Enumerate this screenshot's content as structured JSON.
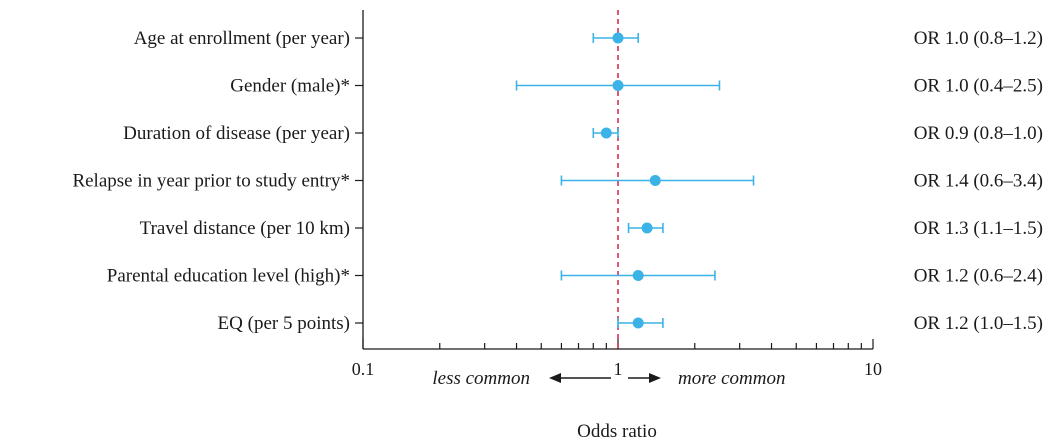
{
  "chart_data": {
    "type": "forest",
    "xlabel": "Odds ratio",
    "xscale": "log",
    "xlim": [
      0.1,
      10
    ],
    "xticks": [
      {
        "value": 0.1,
        "label": "0.1"
      },
      {
        "value": 1,
        "label": "1"
      },
      {
        "value": 10,
        "label": "10"
      }
    ],
    "reference_line": 1,
    "direction_labels": {
      "left": "less common",
      "right": "more common"
    },
    "colors": {
      "marker": "#3bb3e6",
      "reference": "#d9304a",
      "axis": "#1a1a1a"
    },
    "rows": [
      {
        "label": "Age at enrollment (per year)",
        "or": 1.0,
        "lo": 0.8,
        "hi": 1.2,
        "text": "OR 1.0 (0.8–1.2)"
      },
      {
        "label": "Gender  (male)*",
        "or": 1.0,
        "lo": 0.4,
        "hi": 2.5,
        "text": "OR 1.0 (0.4–2.5)"
      },
      {
        "label": "Duration of disease (per year)",
        "or": 0.9,
        "lo": 0.8,
        "hi": 1.0,
        "text": "OR 0.9 (0.8–1.0)"
      },
      {
        "label": "Relapse in year prior to study entry*",
        "or": 1.4,
        "lo": 0.6,
        "hi": 3.4,
        "text": "OR 1.4 (0.6–3.4)"
      },
      {
        "label": "Travel distance (per 10 km)",
        "or": 1.3,
        "lo": 1.1,
        "hi": 1.5,
        "text": "OR 1.3 (1.1–1.5)"
      },
      {
        "label": "Parental education level (high)*",
        "or": 1.2,
        "lo": 0.6,
        "hi": 2.4,
        "text": "OR 1.2 (0.6–2.4)"
      },
      {
        "label": "EQ (per 5 points)",
        "or": 1.2,
        "lo": 1.0,
        "hi": 1.5,
        "text": "OR 1.2 (1.0–1.5)"
      }
    ]
  }
}
